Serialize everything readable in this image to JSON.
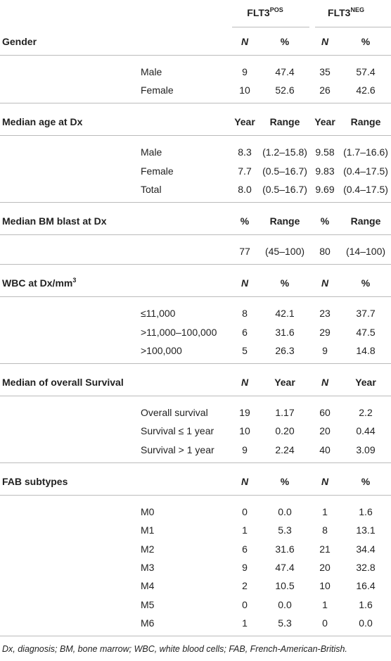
{
  "header": {
    "groups": [
      {
        "base": "FLT3",
        "sup": "POS"
      },
      {
        "base": "FLT3",
        "sup": "NEG"
      }
    ]
  },
  "sections": [
    {
      "title": "Gender",
      "columns": [
        "N",
        "%",
        "N",
        "%"
      ],
      "rows": [
        {
          "label": "Male",
          "cells": [
            "9",
            "47.4",
            "35",
            "57.4"
          ]
        },
        {
          "label": "Female",
          "cells": [
            "10",
            "52.6",
            "26",
            "42.6"
          ]
        }
      ]
    },
    {
      "title": "Median age at Dx",
      "columns": [
        "Year",
        "Range",
        "Year",
        "Range"
      ],
      "rows": [
        {
          "label": "Male",
          "cells": [
            "8.3",
            "(1.2–15.8)",
            "9.58",
            "(1.7–16.6)"
          ]
        },
        {
          "label": "Female",
          "cells": [
            "7.7",
            "(0.5–16.7)",
            "9.83",
            "(0.4–17.5)"
          ]
        },
        {
          "label": "Total",
          "cells": [
            "8.0",
            "(0.5–16.7)",
            "9.69",
            "(0.4–17.5)"
          ]
        }
      ]
    },
    {
      "title": "Median BM blast at Dx",
      "columns": [
        "%",
        "Range",
        "%",
        "Range"
      ],
      "rows": [
        {
          "cells": [
            "77",
            "(45–100)",
            "80",
            "(14–100)"
          ]
        }
      ]
    },
    {
      "title": "WBC at Dx/mm",
      "title_sup": "3",
      "columns": [
        "N",
        "%",
        "N",
        "%"
      ],
      "rows": [
        {
          "label": "≤11,000",
          "cells": [
            "8",
            "42.1",
            "23",
            "37.7"
          ]
        },
        {
          "label": ">11,000–100,000",
          "cells": [
            "6",
            "31.6",
            "29",
            "47.5"
          ]
        },
        {
          "label": ">100,000",
          "cells": [
            "5",
            "26.3",
            "9",
            "14.8"
          ]
        }
      ]
    },
    {
      "title": "Median of overall Survival",
      "columns": [
        "N",
        "Year",
        "N",
        "Year"
      ],
      "rows": [
        {
          "label": "Overall survival",
          "cells": [
            "19",
            "1.17",
            "60",
            "2.2"
          ]
        },
        {
          "label": "Survival ≤ 1 year",
          "cells": [
            "10",
            "0.20",
            "20",
            "0.44"
          ]
        },
        {
          "label": "Survival > 1 year",
          "cells": [
            "9",
            "2.24",
            "40",
            "3.09"
          ]
        }
      ]
    },
    {
      "title": "FAB subtypes",
      "columns": [
        "N",
        "%",
        "N",
        "%"
      ],
      "rows": [
        {
          "label": "M0",
          "cells": [
            "0",
            "0.0",
            "1",
            "1.6"
          ]
        },
        {
          "label": "M1",
          "cells": [
            "1",
            "5.3",
            "8",
            "13.1"
          ]
        },
        {
          "label": "M2",
          "cells": [
            "6",
            "31.6",
            "21",
            "34.4"
          ]
        },
        {
          "label": "M3",
          "cells": [
            "9",
            "47.4",
            "20",
            "32.8"
          ]
        },
        {
          "label": "M4",
          "cells": [
            "2",
            "10.5",
            "10",
            "16.4"
          ]
        },
        {
          "label": "M5",
          "cells": [
            "0",
            "0.0",
            "1",
            "1.6"
          ]
        },
        {
          "label": "M6",
          "cells": [
            "1",
            "5.3",
            "0",
            "0.0"
          ]
        }
      ]
    }
  ],
  "footnote": "Dx, diagnosis; BM, bone marrow; WBC, white blood cells; FAB, French-American-British."
}
